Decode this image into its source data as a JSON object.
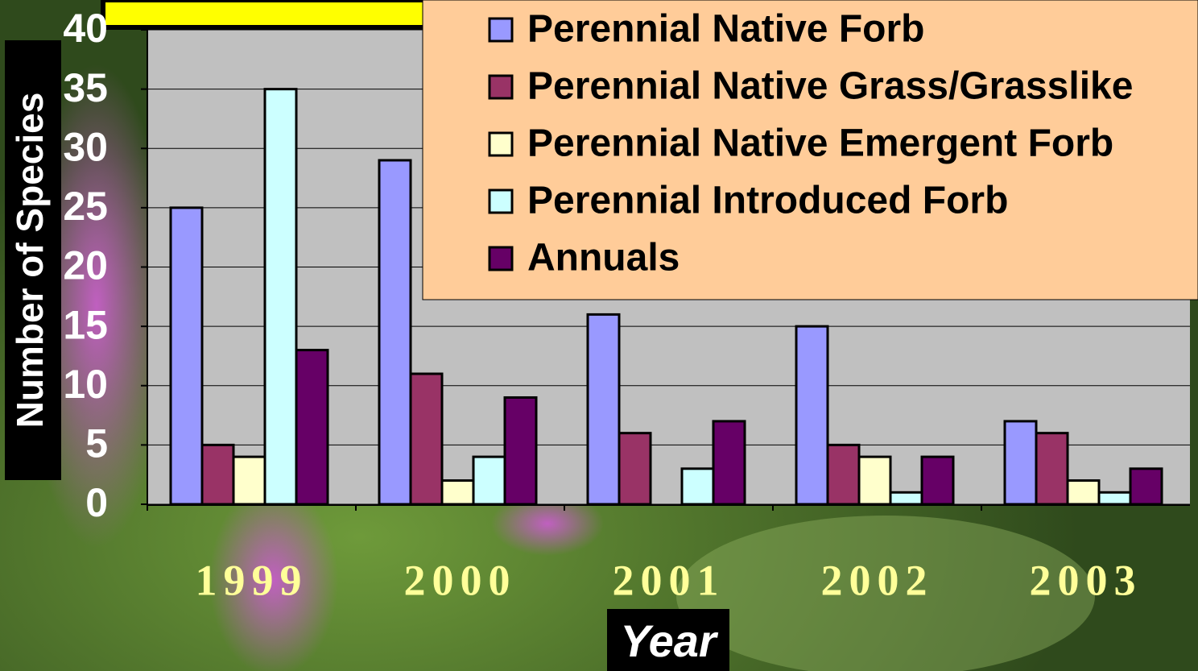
{
  "chart_data": {
    "type": "bar",
    "x_label": "Year",
    "y_label": "Number of Species",
    "categories": [
      "1999",
      "2000",
      "2001",
      "2002",
      "2003"
    ],
    "series": [
      {
        "name": "Perennial Native Forb",
        "color": "#9999ff",
        "values": [
          25,
          29,
          16,
          15,
          7
        ]
      },
      {
        "name": "Perennial Native Grass/Grasslike",
        "color": "#993366",
        "values": [
          5,
          11,
          6,
          5,
          6
        ]
      },
      {
        "name": "Perennial Native Emergent Forb",
        "color": "#ffffcc",
        "values": [
          4,
          2,
          0,
          4,
          2
        ]
      },
      {
        "name": "Perennial Introduced Forb",
        "color": "#ccffff",
        "values": [
          35,
          4,
          3,
          1,
          1
        ]
      },
      {
        "name": "Annuals",
        "color": "#660066",
        "values": [
          13,
          9,
          7,
          4,
          3
        ]
      }
    ],
    "ylim": [
      0,
      40
    ],
    "yticks": [
      0,
      5,
      10,
      15,
      20,
      25,
      30,
      35,
      40
    ],
    "grid": true,
    "legend": "top-right"
  }
}
